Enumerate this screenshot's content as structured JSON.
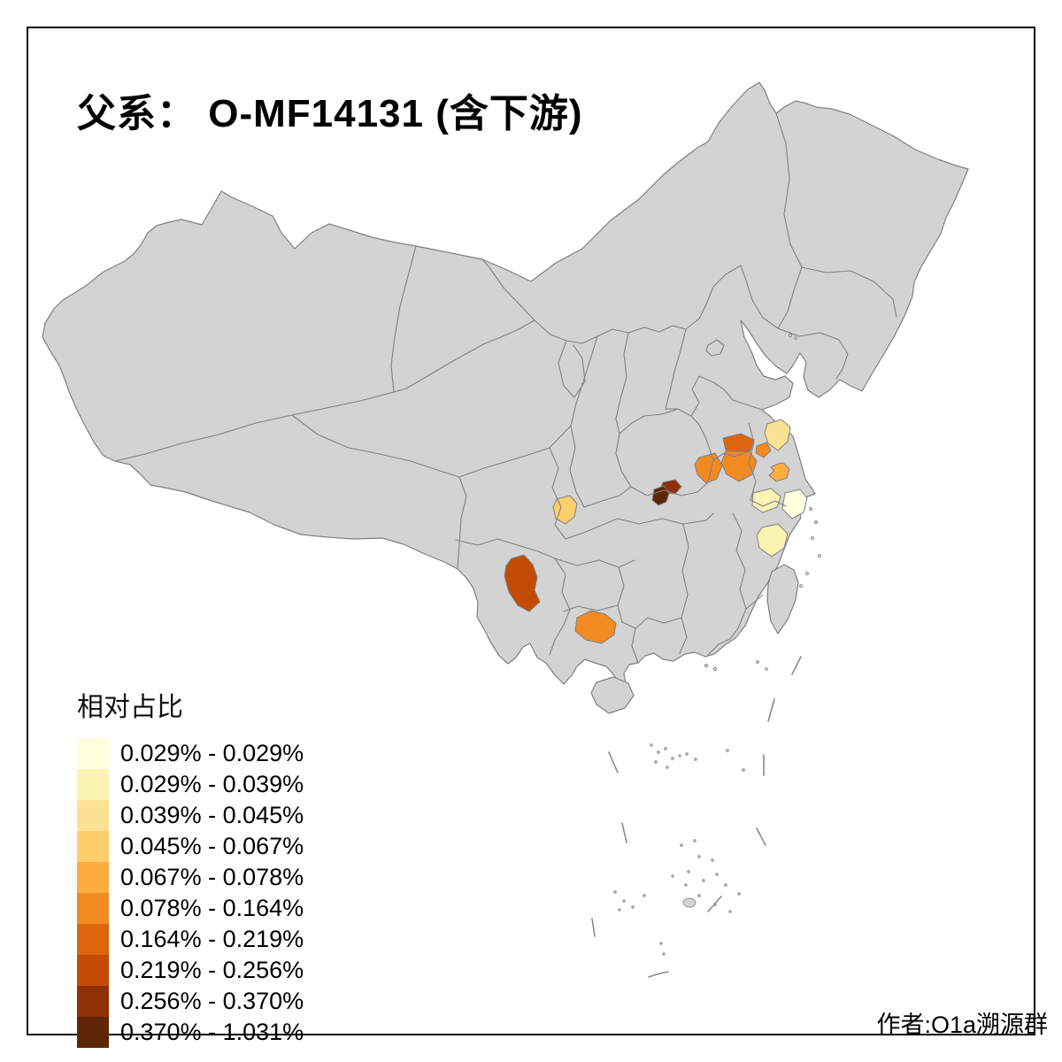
{
  "title": "父系： O-MF14131 (含下游)",
  "author": "作者:O1a溯源群",
  "legend": {
    "title": "相对占比",
    "classes": [
      {
        "label": "0.029% - 0.029%",
        "color": "#FFFFDE"
      },
      {
        "label": "0.029% - 0.039%",
        "color": "#FBF3B2"
      },
      {
        "label": "0.039% - 0.045%",
        "color": "#FDE293"
      },
      {
        "label": "0.045% - 0.067%",
        "color": "#FDCE6B"
      },
      {
        "label": "0.067% - 0.078%",
        "color": "#FDAE3E"
      },
      {
        "label": "0.078% - 0.164%",
        "color": "#F28A22"
      },
      {
        "label": "0.164% - 0.219%",
        "color": "#DD650E"
      },
      {
        "label": "0.219% - 0.256%",
        "color": "#C24A03"
      },
      {
        "label": "0.256% - 0.370%",
        "color": "#8E3104"
      },
      {
        "label": "0.370% - 1.031%",
        "color": "#5F2605"
      }
    ]
  },
  "map": {
    "base_fill": "#D3D3D3",
    "border_color": "#808080",
    "background": "#FFFFFF",
    "regions": [
      {
        "id": "chongqing-area",
        "class_index": 3
      },
      {
        "id": "hubei-central-brown",
        "class_index": 8
      },
      {
        "id": "hubei-central-dark",
        "class_index": 9
      },
      {
        "id": "yunnan-central",
        "class_index": 7
      },
      {
        "id": "henan-north",
        "class_index": 6
      },
      {
        "id": "henan-central",
        "class_index": 5
      },
      {
        "id": "henan-west",
        "class_index": 5
      },
      {
        "id": "henan-east-small",
        "class_index": 5
      },
      {
        "id": "jiangsu-central",
        "class_index": 4
      },
      {
        "id": "guangxi-central",
        "class_index": 5
      },
      {
        "id": "jiangsu-north",
        "class_index": 2
      },
      {
        "id": "zhejiang-northwest",
        "class_index": 1
      },
      {
        "id": "shanghai-adjacent",
        "class_index": 0
      },
      {
        "id": "zhejiang-south",
        "class_index": 1
      }
    ]
  }
}
